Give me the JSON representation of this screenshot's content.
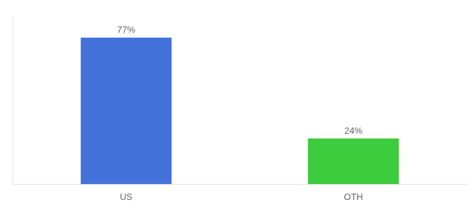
{
  "chart_data": {
    "type": "bar",
    "categories": [
      "US",
      "OTH"
    ],
    "values": [
      77,
      24
    ],
    "value_labels": [
      "77%",
      "24%"
    ],
    "colors": [
      "#4472db",
      "#3dcc3d"
    ],
    "ylim": [
      0,
      88
    ],
    "grid": false,
    "data_labels": true,
    "tick_labels": "x"
  }
}
